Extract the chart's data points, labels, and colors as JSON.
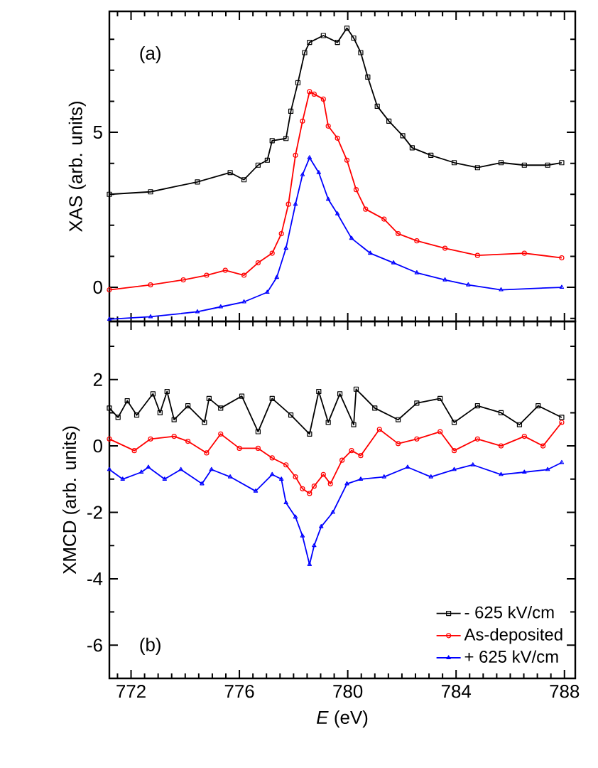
{
  "chart_data": [
    {
      "type": "line",
      "ylabel": "XAS (arb. units)",
      "annotations": [
        "(a)"
      ],
      "tick_labels": "y",
      "xlim": [
        771.2,
        788.4
      ],
      "ylim": [
        -1.1,
        8.9
      ],
      "xticks": [
        {
          "value": 771.5,
          "label": null
        },
        772,
        {
          "value": 772.5,
          "label": null
        },
        {
          "value": 773,
          "label": null
        },
        {
          "value": 773.5,
          "label": null
        },
        {
          "value": 774,
          "label": null
        },
        {
          "value": 774.5,
          "label": null
        },
        {
          "value": 775,
          "label": null
        },
        {
          "value": 775.5,
          "label": null
        },
        776,
        {
          "value": 776.5,
          "label": null
        },
        {
          "value": 777,
          "label": null
        },
        {
          "value": 777.5,
          "label": null
        },
        {
          "value": 778,
          "label": null
        },
        {
          "value": 778.5,
          "label": null
        },
        {
          "value": 779,
          "label": null
        },
        {
          "value": 779.5,
          "label": null
        },
        780,
        {
          "value": 780.5,
          "label": null
        },
        {
          "value": 781,
          "label": null
        },
        {
          "value": 781.5,
          "label": null
        },
        {
          "value": 782,
          "label": null
        },
        {
          "value": 782.5,
          "label": null
        },
        {
          "value": 783,
          "label": null
        },
        {
          "value": 783.5,
          "label": null
        },
        784,
        {
          "value": 784.5,
          "label": null
        },
        {
          "value": 785,
          "label": null
        },
        {
          "value": 785.5,
          "label": null
        },
        {
          "value": 786,
          "label": null
        },
        {
          "value": 786.5,
          "label": null
        },
        {
          "value": 787,
          "label": null
        },
        {
          "value": 787.5,
          "label": null
        },
        788
      ],
      "yticks": [
        {
          "value": -1,
          "label": null
        },
        0,
        {
          "value": 1,
          "label": null
        },
        {
          "value": 2,
          "label": null
        },
        {
          "value": 3,
          "label": null
        },
        {
          "value": 4,
          "label": null
        },
        5,
        {
          "value": 6,
          "label": null
        },
        {
          "value": 7,
          "label": null
        },
        {
          "value": 8,
          "label": null
        }
      ],
      "legend": false,
      "grid": false,
      "series": [
        {
          "color": "#000000",
          "marker": "square",
          "x": [
            771.2,
            772.72,
            774.45,
            775.66,
            776.17,
            776.69,
            777.03,
            777.21,
            777.72,
            777.9,
            778.16,
            778.41,
            778.59,
            779.1,
            779.62,
            779.97,
            780.22,
            780.48,
            780.74,
            781.09,
            781.52,
            782.03,
            782.38,
            783.07,
            783.93,
            784.79,
            785.66,
            786.52,
            787.38,
            787.9
          ],
          "values": [
            3.0,
            3.08,
            3.4,
            3.7,
            3.47,
            3.94,
            4.1,
            4.73,
            4.8,
            5.68,
            6.6,
            7.57,
            7.9,
            8.12,
            7.9,
            8.36,
            8.04,
            7.57,
            6.78,
            5.84,
            5.36,
            4.89,
            4.5,
            4.26,
            4.02,
            3.86,
            4.02,
            3.94,
            3.94,
            4.02
          ]
        },
        {
          "color": "#ff0000",
          "marker": "circle",
          "x": [
            771.2,
            772.72,
            773.93,
            774.79,
            775.48,
            776.17,
            776.69,
            777.21,
            777.55,
            777.81,
            778.07,
            778.33,
            778.59,
            778.76,
            779.1,
            779.28,
            779.62,
            779.97,
            780.31,
            780.66,
            781.34,
            781.86,
            782.55,
            783.59,
            784.79,
            786.52,
            787.9
          ],
          "values": [
            -0.08,
            0.08,
            0.24,
            0.39,
            0.55,
            0.39,
            0.79,
            1.1,
            1.73,
            2.68,
            4.26,
            5.36,
            6.31,
            6.23,
            6.07,
            5.2,
            4.81,
            4.1,
            3.15,
            2.52,
            2.2,
            1.73,
            1.5,
            1.26,
            1.03,
            1.1,
            0.95
          ]
        },
        {
          "color": "#0000ff",
          "marker": "triangle",
          "x": [
            771.2,
            772.72,
            774.45,
            775.31,
            776.17,
            777.03,
            777.38,
            777.72,
            778.07,
            778.33,
            778.59,
            778.93,
            779.28,
            779.62,
            780.14,
            780.83,
            781.69,
            782.55,
            783.59,
            784.45,
            785.66,
            787.9
          ],
          "values": [
            -1.03,
            -0.95,
            -0.79,
            -0.63,
            -0.47,
            -0.16,
            0.32,
            1.26,
            2.68,
            3.63,
            4.18,
            3.7,
            2.84,
            2.37,
            1.58,
            1.1,
            0.79,
            0.47,
            0.24,
            0.08,
            -0.08,
            0
          ]
        }
      ]
    },
    {
      "type": "line",
      "xlabel": "*E* (eV)",
      "ylabel": "XMCD (arb. units)",
      "annotations": [
        "(b)"
      ],
      "xlim": [
        771.2,
        788.4
      ],
      "ylim": [
        -7,
        3.75
      ],
      "xticks": [
        {
          "value": 771.5,
          "label": null
        },
        772,
        {
          "value": 772.5,
          "label": null
        },
        {
          "value": 773,
          "label": null
        },
        {
          "value": 773.5,
          "label": null
        },
        {
          "value": 774,
          "label": null
        },
        {
          "value": 774.5,
          "label": null
        },
        {
          "value": 775,
          "label": null
        },
        {
          "value": 775.5,
          "label": null
        },
        776,
        {
          "value": 776.5,
          "label": null
        },
        {
          "value": 777,
          "label": null
        },
        {
          "value": 777.5,
          "label": null
        },
        {
          "value": 778,
          "label": null
        },
        {
          "value": 778.5,
          "label": null
        },
        {
          "value": 779,
          "label": null
        },
        {
          "value": 779.5,
          "label": null
        },
        780,
        {
          "value": 780.5,
          "label": null
        },
        {
          "value": 781,
          "label": null
        },
        {
          "value": 781.5,
          "label": null
        },
        {
          "value": 782,
          "label": null
        },
        {
          "value": 782.5,
          "label": null
        },
        {
          "value": 783,
          "label": null
        },
        {
          "value": 783.5,
          "label": null
        },
        784,
        {
          "value": 784.5,
          "label": null
        },
        {
          "value": 785,
          "label": null
        },
        {
          "value": 785.5,
          "label": null
        },
        {
          "value": 786,
          "label": null
        },
        {
          "value": 786.5,
          "label": null
        },
        {
          "value": 787,
          "label": null
        },
        {
          "value": 787.5,
          "label": null
        },
        788
      ],
      "yticks": [
        {
          "value": -7,
          "label": null
        },
        -6,
        {
          "value": -5,
          "label": null
        },
        -4,
        {
          "value": -3,
          "label": null
        },
        -2,
        {
          "value": -1,
          "label": null
        },
        0,
        {
          "value": 1,
          "label": null
        },
        2,
        {
          "value": 3,
          "label": null
        }
      ],
      "legend": "bottom right",
      "grid": false,
      "series": [
        {
          "name": "- 625 kV/cm",
          "color": "#000000",
          "marker": "square",
          "x": [
            771.2,
            771.52,
            771.86,
            772.21,
            772.81,
            773.07,
            773.33,
            773.59,
            774.1,
            774.71,
            774.88,
            775.31,
            776.09,
            776.69,
            777.21,
            777.9,
            778.59,
            778.93,
            779.28,
            779.71,
            780.22,
            780.31,
            781.0,
            781.86,
            782.55,
            783.41,
            783.93,
            784.79,
            785.66,
            786.34,
            787.03,
            787.9
          ],
          "values": [
            1.14,
            0.86,
            1.36,
            0.93,
            1.57,
            1.0,
            1.64,
            0.79,
            1.21,
            0.71,
            1.43,
            1.14,
            1.5,
            0.43,
            1.43,
            0.93,
            0.36,
            1.64,
            0.71,
            1.57,
            0.64,
            1.71,
            1.14,
            0.79,
            1.29,
            1.43,
            0.71,
            1.21,
            1.0,
            0.64,
            1.21,
            0.86
          ]
        },
        {
          "name": "As-deposited",
          "color": "#ff0000",
          "marker": "circle",
          "x": [
            771.2,
            772.12,
            772.72,
            773.59,
            774.1,
            774.79,
            775.31,
            776.0,
            776.69,
            777.21,
            777.72,
            778.07,
            778.33,
            778.59,
            778.76,
            779.1,
            779.36,
            779.79,
            780.14,
            780.48,
            781.17,
            781.86,
            782.55,
            783.41,
            783.93,
            784.79,
            785.66,
            786.52,
            787.21,
            787.9
          ],
          "values": [
            0.21,
            -0.14,
            0.21,
            0.29,
            0.14,
            -0.21,
            0.36,
            -0.07,
            -0.07,
            -0.36,
            -0.57,
            -0.93,
            -1.29,
            -1.43,
            -1.21,
            -0.86,
            -1.14,
            -0.43,
            -0.14,
            -0.29,
            0.5,
            0.07,
            0.21,
            0.43,
            -0.14,
            0.21,
            0,
            0.29,
            0,
            0.71
          ]
        },
        {
          "name": "+ 625 kV/cm",
          "color": "#0000ff",
          "marker": "triangle",
          "x": [
            771.2,
            771.69,
            772.38,
            772.64,
            773.24,
            773.84,
            774.62,
            774.97,
            775.66,
            776.6,
            777.21,
            777.55,
            777.72,
            778.07,
            778.33,
            778.59,
            778.76,
            779.02,
            779.45,
            779.97,
            780.48,
            781.34,
            782.21,
            783.07,
            783.93,
            784.62,
            785.66,
            786.52,
            787.38,
            787.9
          ],
          "values": [
            -0.71,
            -1.0,
            -0.79,
            -0.64,
            -1.0,
            -0.71,
            -1.14,
            -0.71,
            -0.93,
            -1.36,
            -0.86,
            -1.0,
            -1.71,
            -2.14,
            -2.71,
            -3.57,
            -3.0,
            -2.43,
            -2.0,
            -1.14,
            -1.0,
            -0.93,
            -0.64,
            -0.93,
            -0.71,
            -0.57,
            -0.86,
            -0.79,
            -0.71,
            -0.5
          ]
        }
      ]
    }
  ]
}
